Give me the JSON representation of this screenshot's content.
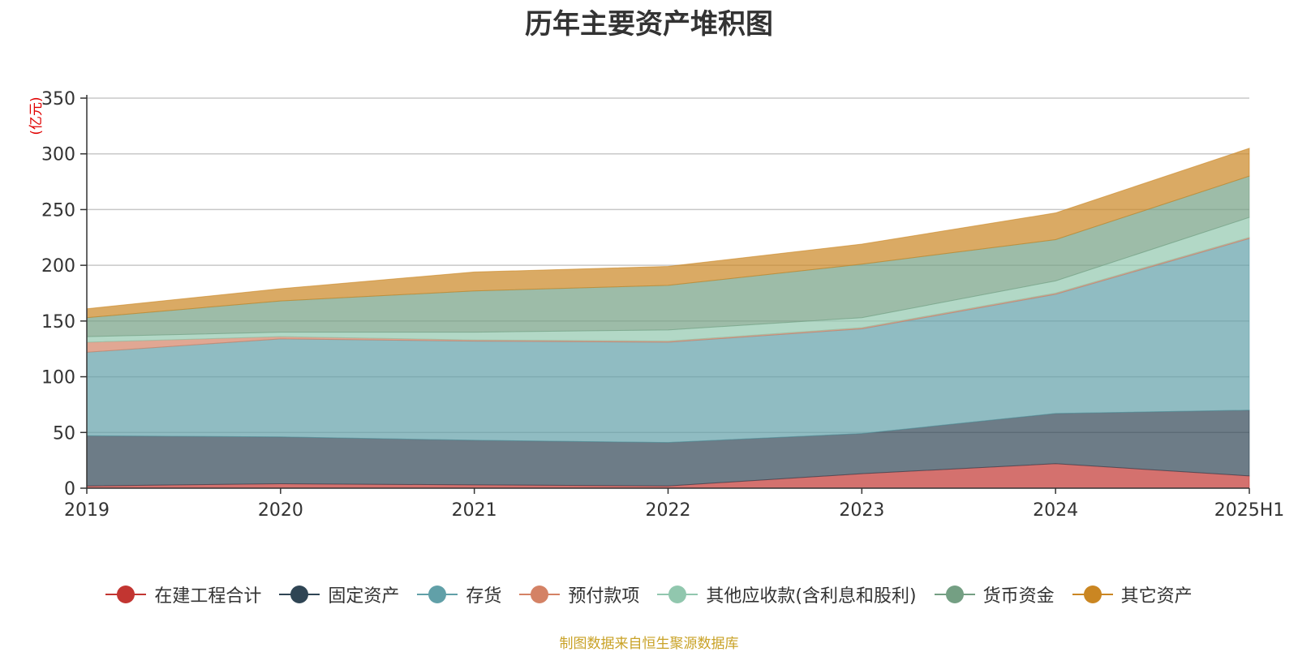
{
  "chart_data": {
    "type": "area",
    "stacked": true,
    "title": "历年主要资产堆积图",
    "ylabel": "(亿元)",
    "xlabel": "",
    "ylim": [
      0,
      350
    ],
    "yticks": [
      0,
      50,
      100,
      150,
      200,
      250,
      300,
      350
    ],
    "grid": true,
    "legend_position": "bottom",
    "categories": [
      "2019",
      "2020",
      "2021",
      "2022",
      "2023",
      "2024",
      "2025H1"
    ],
    "series": [
      {
        "name": "在建工程合计",
        "color": "#c23531",
        "values": [
          2,
          4,
          3,
          2,
          13,
          22,
          11
        ]
      },
      {
        "name": "固定资产",
        "color": "#2f4554",
        "values": [
          45,
          42,
          40,
          39,
          36,
          45,
          59
        ]
      },
      {
        "name": "存货",
        "color": "#61a0a8",
        "values": [
          75,
          88,
          89,
          90,
          94,
          107,
          154
        ]
      },
      {
        "name": "预付款项",
        "color": "#d48265",
        "values": [
          9,
          2,
          1,
          1,
          1,
          1,
          1
        ]
      },
      {
        "name": "其他应收款(含利息和股利)",
        "color": "#91c7ae",
        "values": [
          5,
          4,
          7,
          10,
          9,
          11,
          18
        ]
      },
      {
        "name": "货币资金",
        "color": "#749f83",
        "values": [
          17,
          28,
          37,
          40,
          48,
          37,
          37
        ]
      },
      {
        "name": "其它资产",
        "color": "#ca8622",
        "values": [
          8,
          11,
          17,
          17,
          18,
          24,
          25
        ]
      }
    ]
  },
  "footer": "制图数据来自恒生聚源数据库"
}
